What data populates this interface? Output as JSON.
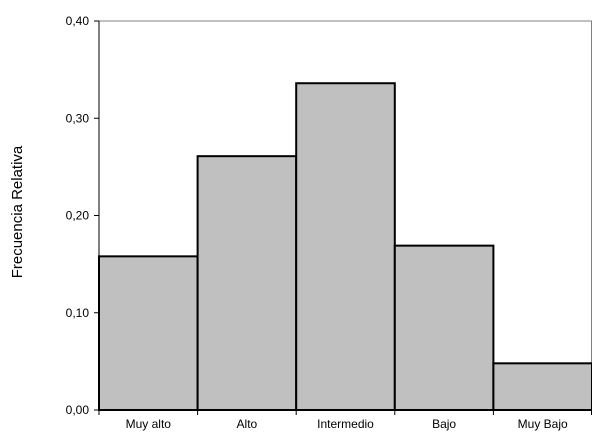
{
  "chart_data": {
    "type": "bar",
    "categories": [
      "Muy alto",
      "Alto",
      "Intermedio",
      "Bajo",
      "Muy Bajo"
    ],
    "values": [
      0.158,
      0.261,
      0.336,
      0.169,
      0.048
    ],
    "ylabel": "Frecuencia Relativa",
    "xlabel": "",
    "title": "",
    "ylim": [
      0,
      0.4
    ],
    "yticks": [
      0,
      0.1,
      0.2,
      0.3,
      0.4
    ],
    "ytick_labels": [
      "0,00",
      "0,10",
      "0,20",
      "0,30",
      "0,40"
    ],
    "grid": false,
    "legend": "none",
    "colors": {
      "bar_fill": "#c0c0c0",
      "bar_stroke": "#000000",
      "axis": "#000000",
      "frame": "#808080"
    }
  }
}
